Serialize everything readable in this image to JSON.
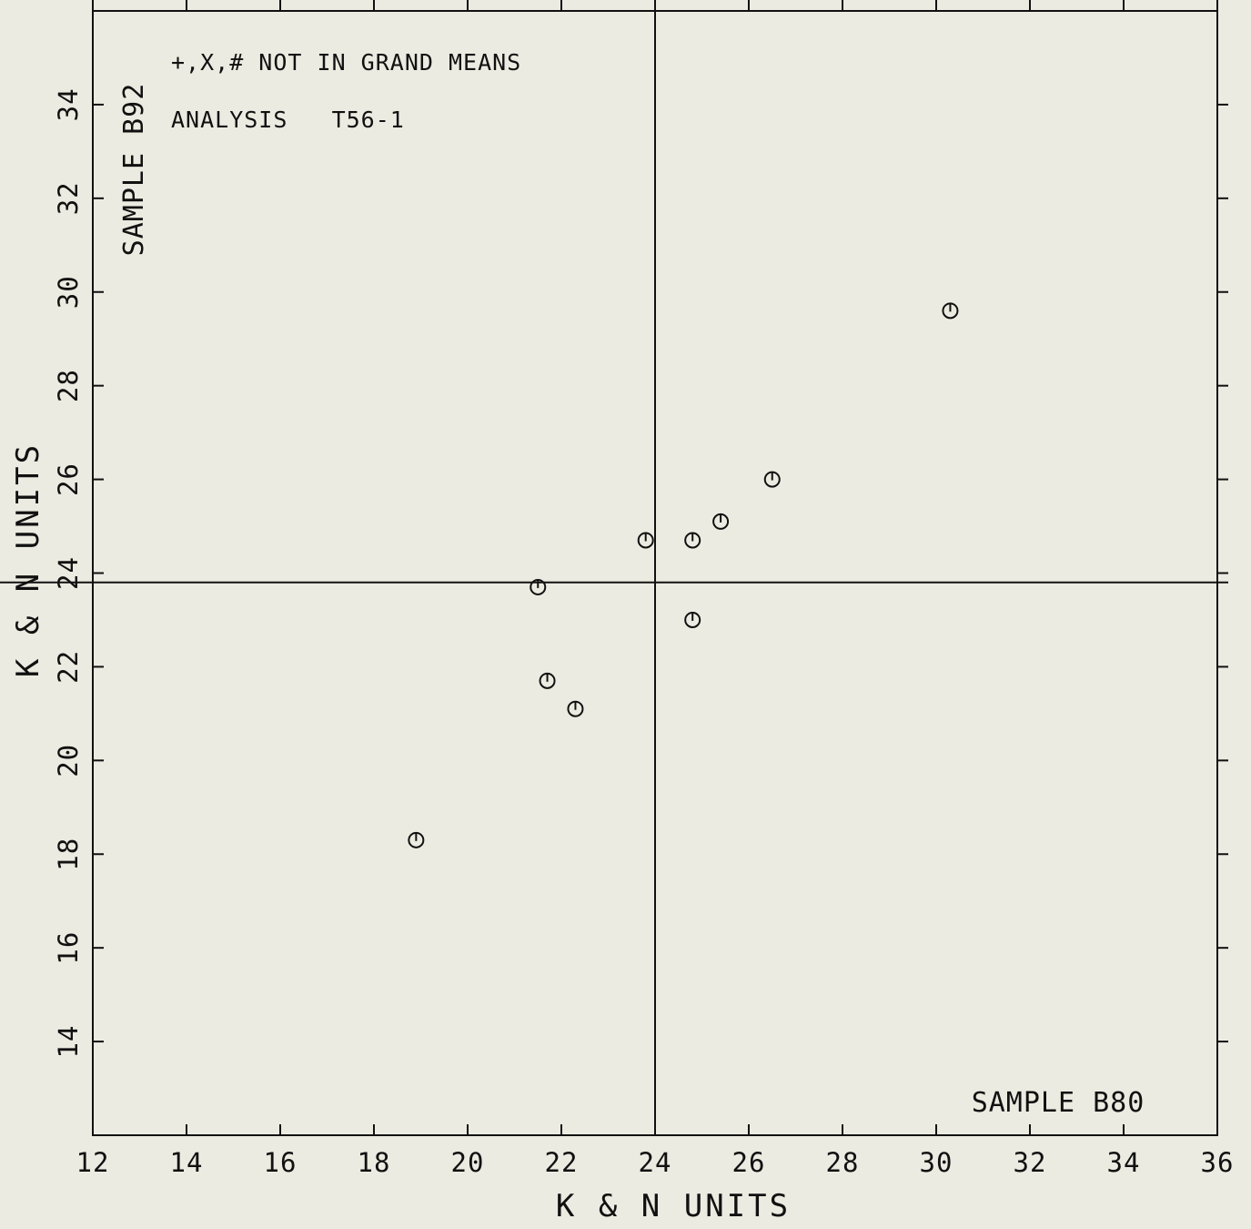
{
  "chart_data": {
    "type": "scatter",
    "title": "",
    "xlabel": "K & N UNITS",
    "ylabel": "K & N UNITS",
    "xlim": [
      12,
      36
    ],
    "ylim": [
      12,
      36
    ],
    "x_ticks": [
      12,
      14,
      16,
      18,
      20,
      22,
      24,
      26,
      28,
      30,
      32,
      34,
      36
    ],
    "y_ticks": [
      14,
      16,
      18,
      20,
      22,
      24,
      26,
      28,
      30,
      32,
      34
    ],
    "x_reference_line": 24.0,
    "y_reference_line": 23.8,
    "marker": "circle-with-tick",
    "series": [
      {
        "points": [
          {
            "x": 30.3,
            "y": 29.6
          },
          {
            "x": 26.5,
            "y": 26.0
          },
          {
            "x": 25.4,
            "y": 25.1
          },
          {
            "x": 23.8,
            "y": 24.7
          },
          {
            "x": 24.8,
            "y": 24.7
          },
          {
            "x": 21.5,
            "y": 23.7
          },
          {
            "x": 24.8,
            "y": 23.0
          },
          {
            "x": 21.7,
            "y": 21.7
          },
          {
            "x": 22.3,
            "y": 21.1
          },
          {
            "x": 18.9,
            "y": 18.3
          }
        ]
      }
    ],
    "annotations": {
      "note": "+,X,# NOT IN GRAND MEANS",
      "analysis": "ANALYSIS   T56-1",
      "y_sample": "SAMPLE B92",
      "x_sample": "SAMPLE B80"
    },
    "grid": false
  }
}
